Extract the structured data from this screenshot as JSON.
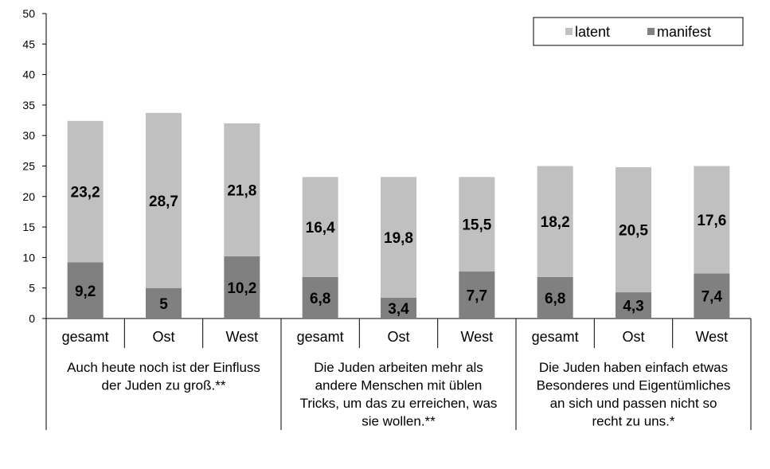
{
  "chart_data": {
    "type": "bar",
    "stacked": true,
    "ylim": [
      0,
      50
    ],
    "yticks": [
      0,
      5,
      10,
      15,
      20,
      25,
      30,
      35,
      40,
      45,
      50
    ],
    "categories": [
      "gesamt",
      "Ost",
      "West",
      "gesamt",
      "Ost",
      "West",
      "gesamt",
      "Ost",
      "West"
    ],
    "groups": [
      {
        "lines": [
          "Auch heute noch ist der Einfluss",
          "der Juden zu groß.**"
        ]
      },
      {
        "lines": [
          "Die Juden arbeiten mehr als",
          "andere Menschen mit üblen",
          "Tricks, um das zu erreichen, was",
          "sie wollen.**"
        ]
      },
      {
        "lines": [
          "Die Juden haben einfach etwas",
          "Besonderes und Eigentümliches",
          "an sich und passen nicht so",
          "recht zu uns.*"
        ]
      }
    ],
    "series": [
      {
        "name": "manifest",
        "color": "#808080",
        "values": [
          9.2,
          5,
          10.2,
          6.8,
          3.4,
          7.7,
          6.8,
          4.3,
          7.4
        ],
        "labels": [
          "9,2",
          "5",
          "10,2",
          "6,8",
          "3,4",
          "7,7",
          "6,8",
          "4,3",
          "7,4"
        ]
      },
      {
        "name": "latent",
        "color": "#c0c0c0",
        "values": [
          23.2,
          28.7,
          21.8,
          16.4,
          19.8,
          15.5,
          18.2,
          20.5,
          17.6
        ],
        "labels": [
          "23,2",
          "28,7",
          "21,8",
          "16,4",
          "19,8",
          "15,5",
          "18,2",
          "20,5",
          "17,6"
        ]
      }
    ],
    "legend": {
      "position": "top-right",
      "order": [
        "latent",
        "manifest"
      ]
    },
    "grid": false
  }
}
